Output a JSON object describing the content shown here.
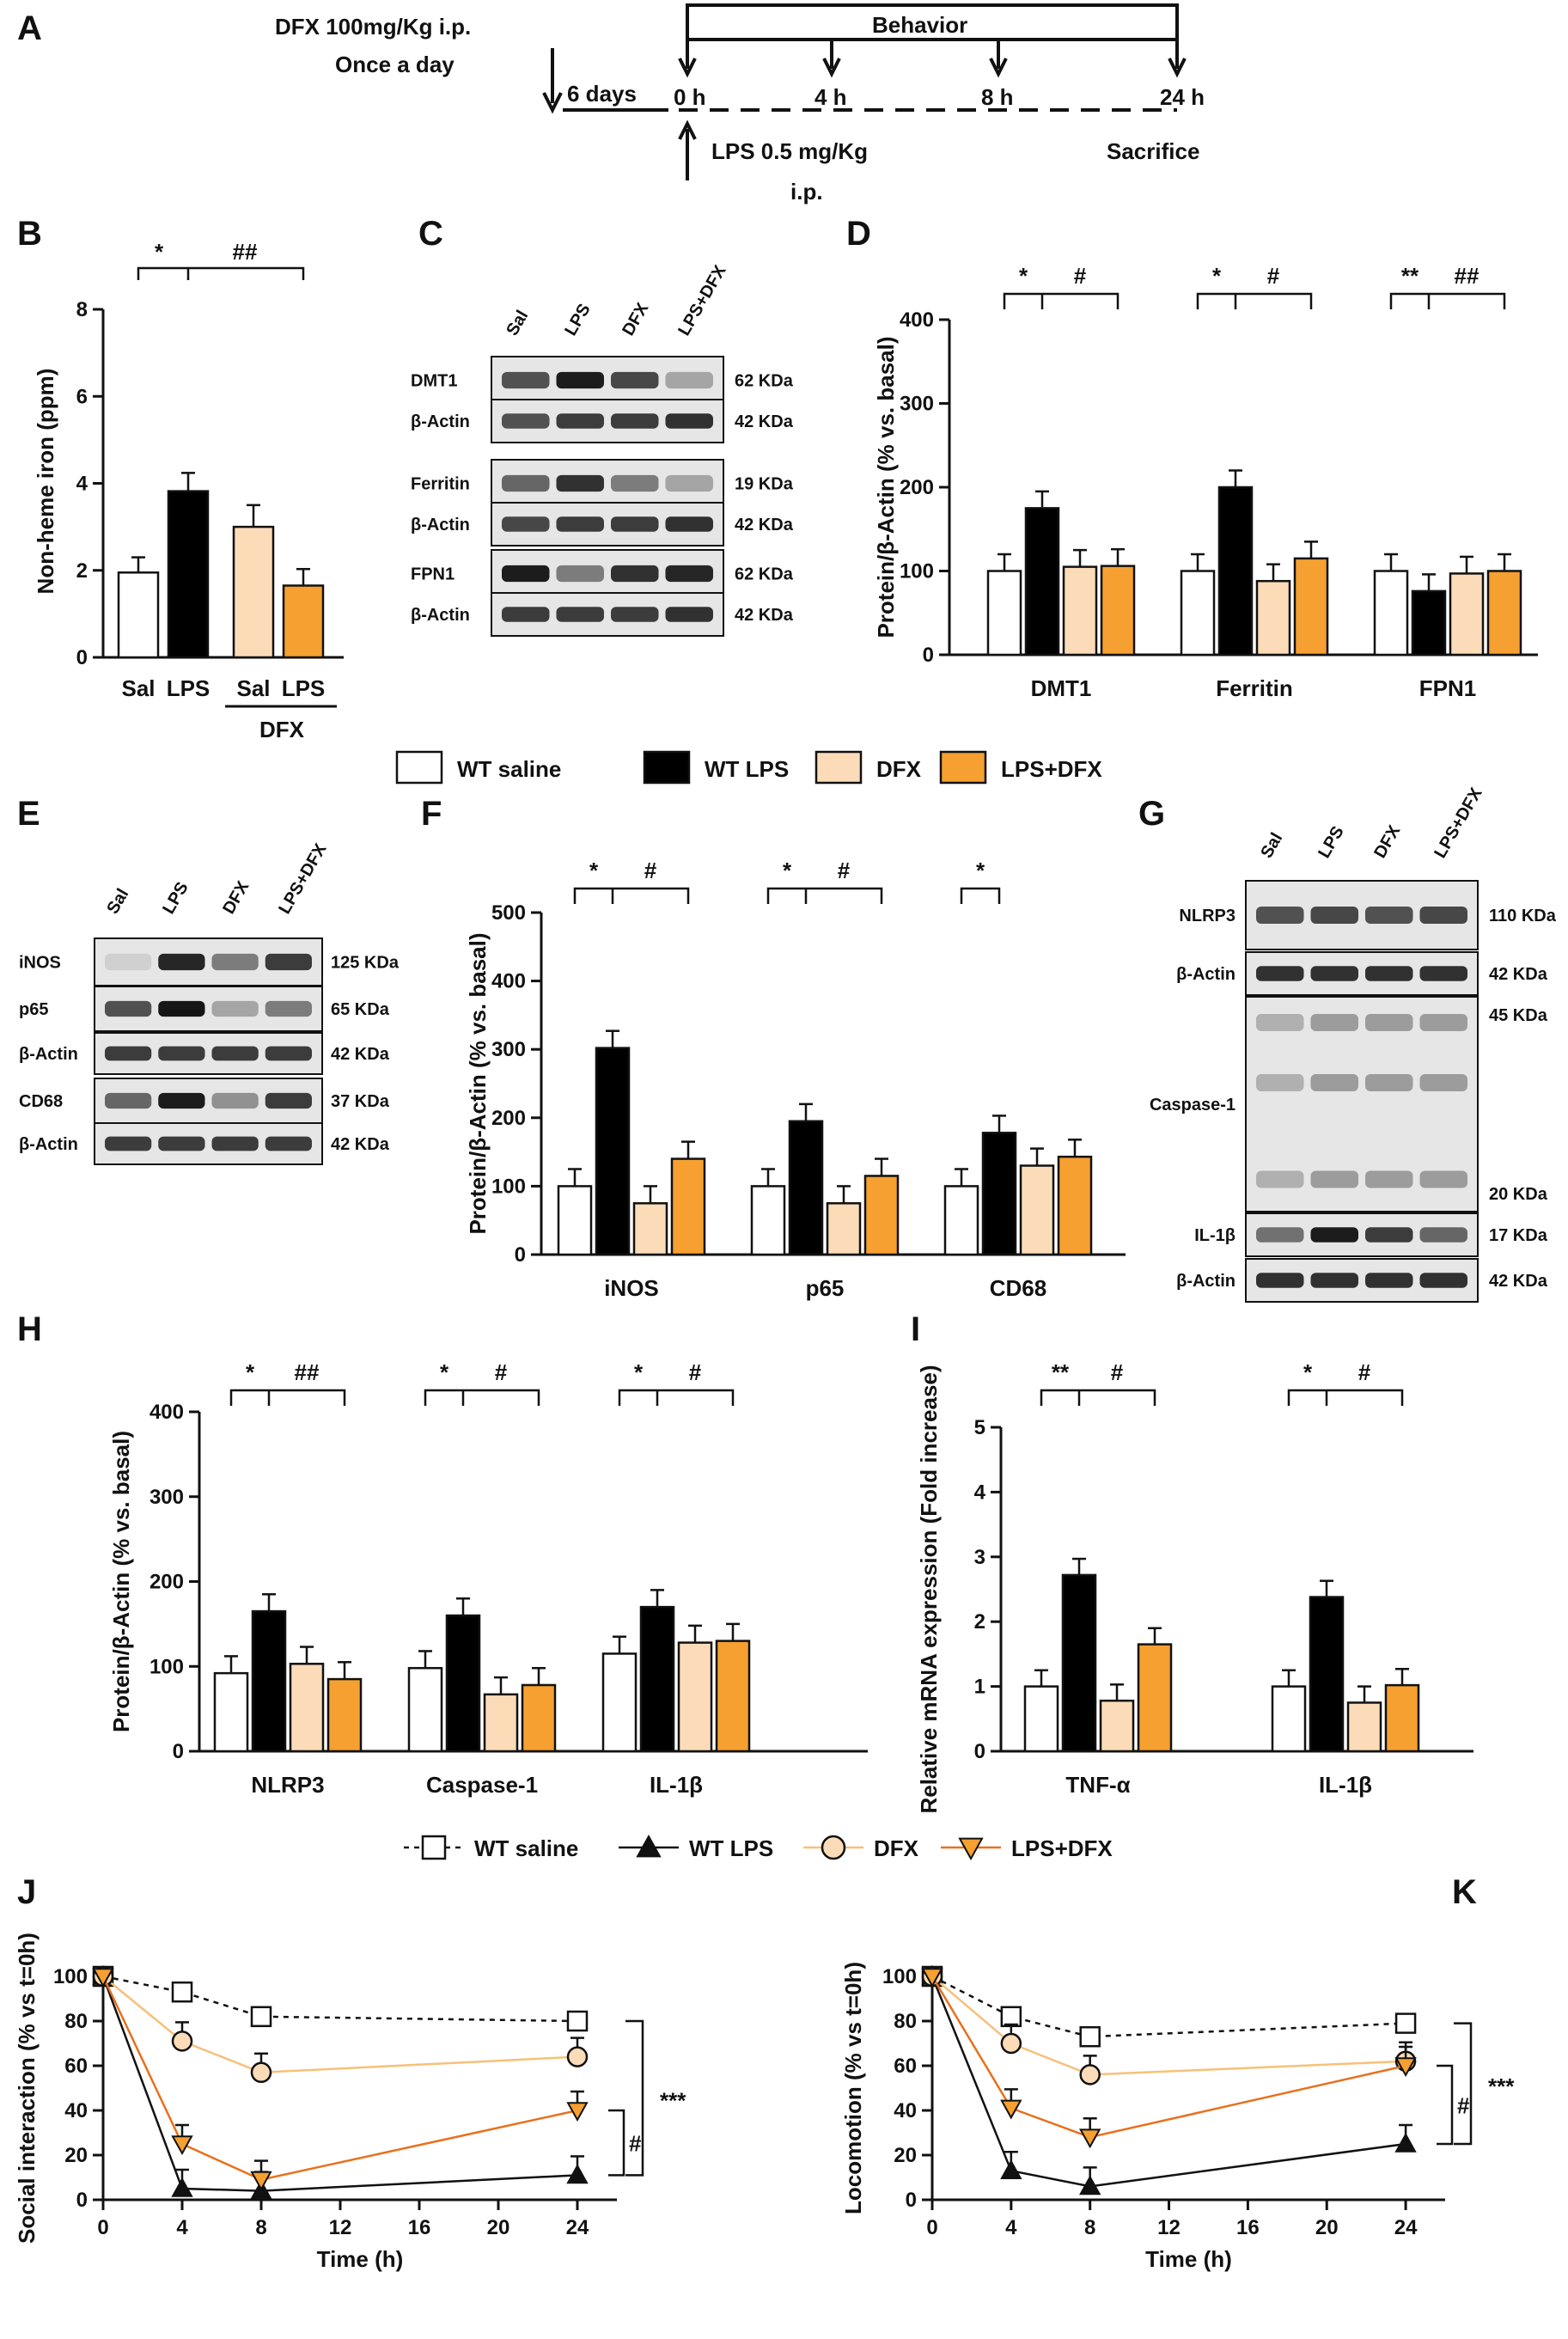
{
  "colors": {
    "wt_saline": "#ffffff",
    "wt_lps": "#000000",
    "dfx": "#fcdcb8",
    "lps_dfx": "#f5a030",
    "dfx_line": "#f7c07a",
    "lpsdfx_line": "#e8701c"
  },
  "panel_letters": [
    "A",
    "B",
    "C",
    "D",
    "E",
    "F",
    "G",
    "H",
    "I",
    "J",
    "K"
  ],
  "timeline": {
    "dfx_label_1": "DFX 100mg/Kg i.p.",
    "dfx_label_2": "Once a day",
    "days": "6 days",
    "behavior": "Behavior",
    "t0": "0 h",
    "t4": "4 h",
    "t8": "8 h",
    "t24": "24 h",
    "lps_1": "LPS 0.5 mg/Kg",
    "lps_2": "i.p.",
    "sacrifice": "Sacrifice"
  },
  "legend_bars": [
    "WT saline",
    "WT LPS",
    "DFX",
    "LPS+DFX"
  ],
  "legend_lines": [
    "WT saline",
    "WT LPS",
    "DFX",
    "LPS+DFX"
  ],
  "blots": {
    "lanes": [
      "Sal",
      "LPS",
      "DFX",
      "LPS+DFX"
    ],
    "C": [
      {
        "name": "DMT1",
        "kda": "62 KDa"
      },
      {
        "name": "β-Actin",
        "kda": "42 KDa"
      },
      {
        "name": "Ferritin",
        "kda": "19 KDa"
      },
      {
        "name": "β-Actin",
        "kda": "42 KDa"
      },
      {
        "name": "FPN1",
        "kda": "62 KDa"
      },
      {
        "name": "β-Actin",
        "kda": "42 KDa"
      }
    ],
    "E": [
      {
        "name": "iNOS",
        "kda": "125 KDa"
      },
      {
        "name": "p65",
        "kda": "65 KDa"
      },
      {
        "name": "β-Actin",
        "kda": "42 KDa"
      },
      {
        "name": "CD68",
        "kda": "37 KDa"
      },
      {
        "name": "β-Actin",
        "kda": "42 KDa"
      }
    ],
    "G": [
      {
        "name": "NLRP3",
        "kda": "110 KDa"
      },
      {
        "name": "β-Actin",
        "kda": "42 KDa"
      },
      {
        "name": "Caspase-1",
        "kda_top": "45 KDa",
        "kda_bottom": "20 KDa"
      },
      {
        "name": "IL-1β",
        "kda": "17 KDa"
      },
      {
        "name": "β-Actin",
        "kda": "42 KDa"
      }
    ]
  },
  "chart_data": [
    {
      "panel": "B",
      "type": "bar",
      "ylabel": "Non-heme iron (ppm)",
      "ylim": [
        0,
        8
      ],
      "yticks": [
        0,
        2,
        4,
        6,
        8
      ],
      "categories": [
        "Sal",
        "LPS",
        "Sal",
        "LPS"
      ],
      "group_label": "DFX",
      "values": [
        1.95,
        3.82,
        3.0,
        1.65
      ],
      "errors": [
        0.35,
        0.42,
        0.5,
        0.38
      ],
      "significance": [
        "*",
        "##"
      ]
    },
    {
      "panel": "D",
      "type": "bar",
      "ylabel": "Protein/β-Actin (% vs. basal)",
      "ylim": [
        0,
        400
      ],
      "yticks": [
        0,
        100,
        200,
        300,
        400
      ],
      "groups": [
        "DMT1",
        "Ferritin",
        "FPN1"
      ],
      "series": [
        {
          "name": "WT saline",
          "values": [
            100,
            100,
            100
          ]
        },
        {
          "name": "WT LPS",
          "values": [
            175,
            200,
            76
          ]
        },
        {
          "name": "DFX",
          "values": [
            105,
            88,
            97
          ]
        },
        {
          "name": "LPS+DFX",
          "values": [
            106,
            115,
            100
          ]
        }
      ],
      "significance": [
        [
          "*",
          "#"
        ],
        [
          "*",
          "#"
        ],
        [
          "**",
          "##"
        ]
      ]
    },
    {
      "panel": "F",
      "type": "bar",
      "ylabel": "Protein/β-Actin (% vs. basal)",
      "ylim": [
        0,
        500
      ],
      "yticks": [
        0,
        100,
        200,
        300,
        400,
        500
      ],
      "groups": [
        "iNOS",
        "p65",
        "CD68"
      ],
      "series": [
        {
          "name": "WT saline",
          "values": [
            100,
            100,
            100
          ]
        },
        {
          "name": "WT LPS",
          "values": [
            302,
            195,
            178
          ]
        },
        {
          "name": "DFX",
          "values": [
            75,
            75,
            130
          ]
        },
        {
          "name": "LPS+DFX",
          "values": [
            140,
            115,
            143
          ]
        }
      ],
      "significance": [
        [
          "*",
          "#"
        ],
        [
          "*",
          "#"
        ],
        [
          "*"
        ]
      ]
    },
    {
      "panel": "H",
      "type": "bar",
      "ylabel": "Protein/β-Actin (% vs. basal)",
      "ylim": [
        0,
        400
      ],
      "yticks": [
        0,
        100,
        200,
        300,
        400
      ],
      "groups": [
        "NLRP3",
        "Caspase-1",
        "IL-1β"
      ],
      "series": [
        {
          "name": "WT saline",
          "values": [
            92,
            98,
            115
          ]
        },
        {
          "name": "WT LPS",
          "values": [
            165,
            160,
            170
          ]
        },
        {
          "name": "DFX",
          "values": [
            103,
            67,
            128
          ]
        },
        {
          "name": "LPS+DFX",
          "values": [
            85,
            78,
            130
          ]
        }
      ],
      "significance": [
        [
          "*",
          "##"
        ],
        [
          "*",
          "#"
        ],
        [
          "*",
          "#"
        ]
      ]
    },
    {
      "panel": "I",
      "type": "bar",
      "ylabel": "Relative mRNA expression (Fold increase)",
      "ylim": [
        0,
        5
      ],
      "yticks": [
        0,
        1,
        2,
        3,
        4,
        5
      ],
      "groups": [
        "TNF-α",
        "IL-1β"
      ],
      "series": [
        {
          "name": "WT saline",
          "values": [
            1.0,
            1.0
          ]
        },
        {
          "name": "WT LPS",
          "values": [
            2.72,
            2.38
          ]
        },
        {
          "name": "DFX",
          "values": [
            0.78,
            0.75
          ]
        },
        {
          "name": "LPS+DFX",
          "values": [
            1.65,
            1.02
          ]
        }
      ],
      "significance": [
        [
          "**",
          "#"
        ],
        [
          "*",
          "#"
        ]
      ]
    },
    {
      "panel": "J",
      "type": "line",
      "xlabel": "Time (h)",
      "ylabel": "Social interaction (% vs t=0h)",
      "xlim": [
        0,
        26
      ],
      "xticks": [
        0,
        4,
        8,
        12,
        16,
        20,
        24
      ],
      "ylim": [
        0,
        100
      ],
      "yticks": [
        0,
        20,
        40,
        60,
        80,
        100
      ],
      "x": [
        0,
        4,
        8,
        24
      ],
      "series": [
        {
          "name": "WT saline",
          "values": [
            100,
            93,
            82,
            80
          ]
        },
        {
          "name": "WT LPS",
          "values": [
            100,
            5,
            4,
            11
          ]
        },
        {
          "name": "DFX",
          "values": [
            100,
            71,
            57,
            64
          ]
        },
        {
          "name": "LPS+DFX",
          "values": [
            100,
            25,
            9,
            40
          ]
        }
      ],
      "significance": [
        "***",
        "#"
      ]
    },
    {
      "panel": "K",
      "type": "line",
      "xlabel": "Time (h)",
      "ylabel": "Locomotion (% vs t=0h)",
      "xlim": [
        0,
        26
      ],
      "xticks": [
        0,
        4,
        8,
        12,
        16,
        20,
        24
      ],
      "ylim": [
        0,
        100
      ],
      "yticks": [
        0,
        20,
        40,
        60,
        80,
        100
      ],
      "x": [
        0,
        4,
        8,
        24
      ],
      "series": [
        {
          "name": "WT saline",
          "values": [
            100,
            82,
            73,
            79
          ]
        },
        {
          "name": "WT LPS",
          "values": [
            100,
            13,
            6,
            25
          ]
        },
        {
          "name": "DFX",
          "values": [
            100,
            70,
            56,
            62
          ]
        },
        {
          "name": "LPS+DFX",
          "values": [
            100,
            41,
            28,
            60
          ]
        }
      ],
      "significance": [
        "***",
        "#"
      ]
    }
  ]
}
